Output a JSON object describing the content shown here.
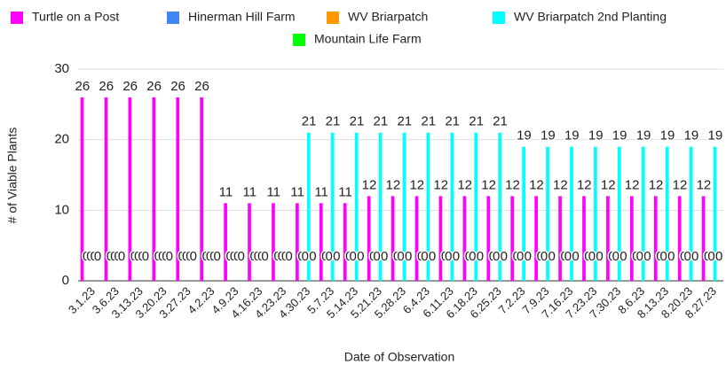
{
  "chart_data": {
    "type": "bar",
    "x_label": "Date of Observation",
    "y_label": "# of Viable Plants",
    "categories": [
      "3.1.23",
      "3.6.23",
      "3.13.23",
      "3.20.23",
      "3.27.23",
      "4.2.23",
      "4.9.23",
      "4.16.23",
      "4.23.23",
      "4.30.23",
      "5.7.23",
      "5.14.23",
      "5.21.23",
      "5.28.23",
      "6.4.23",
      "6.11.23",
      "6.18.23",
      "6.25.23",
      "7.2.23",
      "7.9.23",
      "7.16.23",
      "7.23.23",
      "7.30.23",
      "8.6.23",
      "8.13.23",
      "8.20.23",
      "8.27.23"
    ],
    "series": [
      {
        "name": "Turtle on a Post",
        "color": "#ff00ff",
        "values": [
          26,
          26,
          26,
          26,
          26,
          26,
          11,
          11,
          11,
          11,
          11,
          11,
          12,
          12,
          12,
          12,
          12,
          12,
          12,
          12,
          12,
          12,
          12,
          12,
          12,
          12,
          12
        ]
      },
      {
        "name": "Hinerman Hill Farm",
        "color": "#4285f4",
        "values": [
          0,
          0,
          0,
          0,
          0,
          0,
          0,
          0,
          0,
          0,
          0,
          0,
          0,
          0,
          0,
          0,
          0,
          0,
          0,
          0,
          0,
          0,
          0,
          0,
          0,
          0,
          0
        ]
      },
      {
        "name": "WV Briarpatch",
        "color": "#ff9900",
        "values": [
          0,
          0,
          0,
          0,
          0,
          0,
          0,
          0,
          0,
          0,
          0,
          0,
          0,
          0,
          0,
          0,
          0,
          0,
          0,
          0,
          0,
          0,
          0,
          0,
          0,
          0,
          0
        ]
      },
      {
        "name": "WV Briarpatch 2nd Planting",
        "color": "#00ffff",
        "values": [
          0,
          0,
          0,
          0,
          0,
          0,
          0,
          0,
          0,
          21,
          21,
          21,
          21,
          21,
          21,
          21,
          21,
          21,
          19,
          19,
          19,
          19,
          19,
          19,
          19,
          19,
          19
        ]
      },
      {
        "name": "Mountain Life Farm",
        "color": "#00ff00",
        "values": [
          0,
          0,
          0,
          0,
          0,
          0,
          0,
          0,
          0,
          0,
          0,
          0,
          0,
          0,
          0,
          0,
          0,
          0,
          0,
          0,
          0,
          0,
          0,
          0,
          0,
          0,
          0
        ]
      }
    ],
    "ylim": [
      0,
      30
    ],
    "yticks": [
      0,
      10,
      20,
      30
    ],
    "grid": true,
    "legend": "top"
  }
}
